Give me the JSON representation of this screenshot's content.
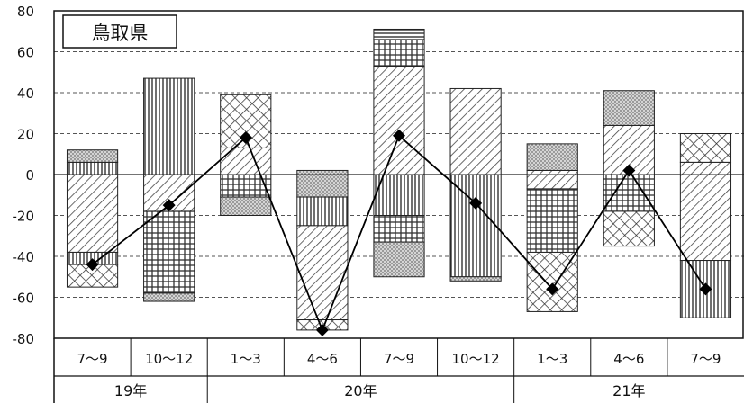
{
  "chart_data": {
    "type": "bar",
    "subtype": "stacked-contribution-bar-with-line",
    "title": "鳥取県",
    "xlabel": "",
    "ylabel": "",
    "ylim": [
      -80,
      80
    ],
    "yticks": [
      80,
      60,
      40,
      20,
      0,
      -20,
      -40,
      -60,
      -80
    ],
    "grid": true,
    "categories": [
      "7～9",
      "10～12",
      "1～3",
      "4～6",
      "7～9",
      "10～12",
      "1～3",
      "4～6",
      "7～9"
    ],
    "year_groups": [
      {
        "label": "19年",
        "start": 0,
        "end": 1
      },
      {
        "label": "20年",
        "start": 2,
        "end": 5
      },
      {
        "label": "21年",
        "start": 6,
        "end": 8
      }
    ],
    "components": [
      {
        "pattern": "diagonal"
      },
      {
        "pattern": "crosshatch"
      },
      {
        "pattern": "vertical"
      },
      {
        "pattern": "grid"
      },
      {
        "pattern": "dots"
      },
      {
        "pattern": "horizontal"
      }
    ],
    "stacks": [
      [
        {
          "from": 0,
          "to": 6,
          "pattern": "vertical"
        },
        {
          "from": 6,
          "to": 12,
          "pattern": "dots"
        },
        {
          "from": 0,
          "to": -38,
          "pattern": "diagonal"
        },
        {
          "from": -38,
          "to": -44,
          "pattern": "vertical"
        },
        {
          "from": -44,
          "to": -55,
          "pattern": "crosshatch"
        }
      ],
      [
        {
          "from": 0,
          "to": 47,
          "pattern": "vertical"
        },
        {
          "from": 0,
          "to": -18,
          "pattern": "diagonal"
        },
        {
          "from": -18,
          "to": -58,
          "pattern": "grid"
        },
        {
          "from": -58,
          "to": -62,
          "pattern": "dots"
        }
      ],
      [
        {
          "from": 0,
          "to": 13,
          "pattern": "diagonal"
        },
        {
          "from": 13,
          "to": 39,
          "pattern": "crosshatch"
        },
        {
          "from": 0,
          "to": -11,
          "pattern": "grid"
        },
        {
          "from": -11,
          "to": -20,
          "pattern": "dots"
        }
      ],
      [
        {
          "from": 0,
          "to": 2,
          "pattern": "dots"
        },
        {
          "from": 0,
          "to": -11,
          "pattern": "dots"
        },
        {
          "from": -11,
          "to": -25,
          "pattern": "vertical"
        },
        {
          "from": -25,
          "to": -71,
          "pattern": "diagonal"
        },
        {
          "from": -71,
          "to": -76,
          "pattern": "crosshatch"
        }
      ],
      [
        {
          "from": 0,
          "to": 53,
          "pattern": "diagonal"
        },
        {
          "from": 53,
          "to": 66,
          "pattern": "grid"
        },
        {
          "from": 66,
          "to": 71,
          "pattern": "horizontal"
        },
        {
          "from": 0,
          "to": -20,
          "pattern": "vertical"
        },
        {
          "from": -20,
          "to": -33,
          "pattern": "grid"
        },
        {
          "from": -33,
          "to": -50,
          "pattern": "dots"
        }
      ],
      [
        {
          "from": 0,
          "to": 42,
          "pattern": "diagonal"
        },
        {
          "from": 0,
          "to": -50,
          "pattern": "vertical"
        },
        {
          "from": -50,
          "to": -52,
          "pattern": "dots"
        }
      ],
      [
        {
          "from": 0,
          "to": 2,
          "pattern": "diagonal"
        },
        {
          "from": 2,
          "to": 15,
          "pattern": "dots"
        },
        {
          "from": 0,
          "to": -7,
          "pattern": "diagonal"
        },
        {
          "from": -7,
          "to": -38,
          "pattern": "grid"
        },
        {
          "from": -38,
          "to": -67,
          "pattern": "crosshatch"
        }
      ],
      [
        {
          "from": 0,
          "to": 24,
          "pattern": "diagonal"
        },
        {
          "from": 24,
          "to": 41,
          "pattern": "dots"
        },
        {
          "from": 0,
          "to": -18,
          "pattern": "grid"
        },
        {
          "from": -18,
          "to": -35,
          "pattern": "crosshatch"
        }
      ],
      [
        {
          "from": 0,
          "to": 6,
          "pattern": "diagonal"
        },
        {
          "from": 6,
          "to": 20,
          "pattern": "crosshatch"
        },
        {
          "from": 0,
          "to": -42,
          "pattern": "diagonal"
        },
        {
          "from": -42,
          "to": -70,
          "pattern": "vertical"
        }
      ]
    ],
    "line": {
      "marker": "diamond",
      "values": [
        -44,
        -15,
        18,
        -76,
        19,
        -14,
        -56,
        2,
        -56
      ]
    }
  }
}
